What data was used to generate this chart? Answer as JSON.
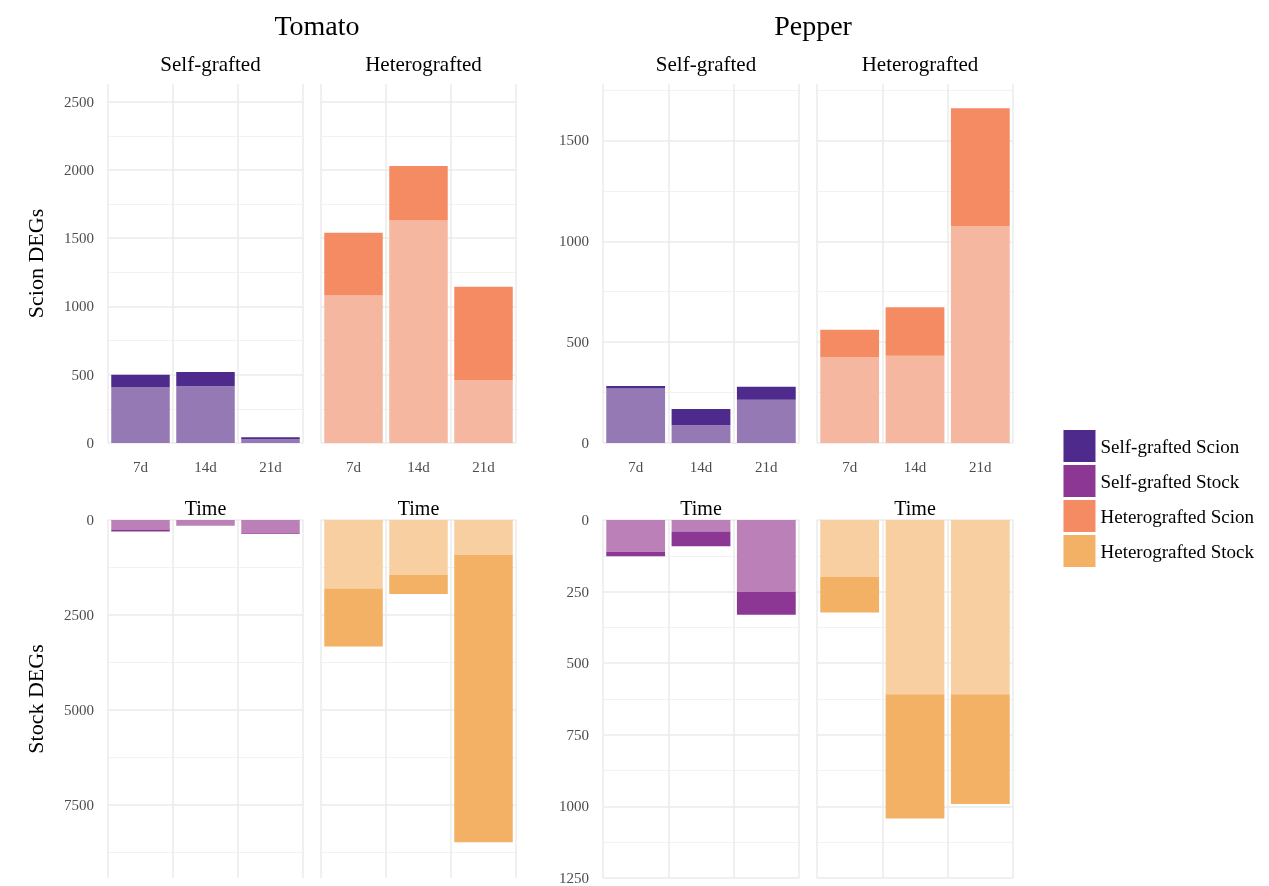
{
  "chart_data": [
    {
      "type": "bar",
      "title": "Tomato",
      "subtitle": "Self-grafted",
      "xlabel": "Time",
      "ylabel": "Scion DEGs",
      "categories": [
        "7d",
        "14d",
        "21d"
      ],
      "stacked": true,
      "ylim": [
        0,
        2630
      ],
      "yticks": [
        0,
        500,
        1000,
        1500,
        2000,
        2500
      ],
      "grid": true,
      "series": [
        {
          "color": "#9479b5",
          "values": [
            410,
            415,
            27
          ]
        },
        {
          "name": "Self-grafted Scion",
          "color": "#4e2a8c",
          "values": [
            90,
            105,
            15
          ]
        }
      ]
    },
    {
      "type": "bar",
      "subtitle": "Heterografted",
      "xlabel": "Time",
      "categories": [
        "7d",
        "14d",
        "21d"
      ],
      "stacked": true,
      "ylim": [
        0,
        2630
      ],
      "yticks": [
        0,
        500,
        1000,
        1500,
        2000,
        2500
      ],
      "grid": true,
      "tick_labels": "x",
      "series": [
        {
          "color": "#f5b7a0",
          "values": [
            1080,
            1630,
            460
          ]
        },
        {
          "name": "Heterografted Scion",
          "color": "#f48b63",
          "values": [
            460,
            400,
            685
          ]
        }
      ]
    },
    {
      "type": "bar",
      "title": "Pepper",
      "subtitle": "Self-grafted",
      "xlabel": "Time",
      "categories": [
        "7d",
        "14d",
        "21d"
      ],
      "stacked": true,
      "ylim": [
        0,
        1780
      ],
      "yticks": [
        0,
        500,
        1000,
        1500
      ],
      "grid": true,
      "series": [
        {
          "color": "#9479b5",
          "values": [
            270,
            88,
            215
          ]
        },
        {
          "name": "Self-grafted Scion",
          "color": "#4e2a8c",
          "values": [
            13,
            81,
            64
          ]
        }
      ]
    },
    {
      "type": "bar",
      "subtitle": "Heterografted",
      "xlabel": "Time",
      "categories": [
        "7d",
        "14d",
        "21d"
      ],
      "stacked": true,
      "ylim": [
        0,
        1780
      ],
      "yticks": [
        0,
        500,
        1000,
        1500
      ],
      "grid": true,
      "tick_labels": "x",
      "legend": "right",
      "series": [
        {
          "color": "#f5b7a0",
          "values": [
            427,
            432,
            1075
          ]
        },
        {
          "name": "Heterografted Scion",
          "color": "#f48b63",
          "values": [
            134,
            241,
            585
          ]
        }
      ]
    },
    {
      "type": "bar",
      "ylabel": "Stock DEGs",
      "categories": [
        "7d",
        "14d",
        "21d"
      ],
      "stacked": true,
      "ylim": [
        9420,
        0
      ],
      "yticks": [
        0,
        2500,
        5000,
        7500
      ],
      "grid": true,
      "tick_labels": "y",
      "series": [
        {
          "color": "#bc80b9",
          "values": [
            250,
            150,
            340
          ]
        },
        {
          "name": "Self-grafted Stock",
          "color": "#8c3793",
          "values": [
            50,
            null,
            20
          ]
        }
      ]
    },
    {
      "type": "bar",
      "categories": [
        "7d",
        "14d",
        "21d"
      ],
      "stacked": true,
      "ylim": [
        9420,
        0
      ],
      "yticks": [
        0,
        2500,
        5000,
        7500
      ],
      "grid": true,
      "tick_labels": false,
      "series": [
        {
          "color": "#f7cfa1",
          "values": [
            1800,
            1450,
            920
          ]
        },
        {
          "name": "Heterografted Stock",
          "color": "#f2b165",
          "values": [
            1530,
            500,
            7560
          ]
        }
      ]
    },
    {
      "type": "bar",
      "categories": [
        "7d",
        "14d",
        "21d"
      ],
      "stacked": true,
      "ylim": [
        1250,
        0
      ],
      "yticks": [
        0,
        250,
        500,
        750,
        1000,
        1250
      ],
      "grid": true,
      "tick_labels": "y",
      "series": [
        {
          "color": "#bc80b9",
          "values": [
            111,
            40,
            251
          ]
        },
        {
          "name": "Self-grafted Stock",
          "color": "#8c3793",
          "values": [
            16,
            52,
            80
          ]
        }
      ]
    },
    {
      "type": "bar",
      "categories": [
        "7d",
        "14d",
        "21d"
      ],
      "stacked": true,
      "ylim": [
        1250,
        0
      ],
      "yticks": [
        0,
        250,
        500,
        750,
        1000,
        1250
      ],
      "grid": true,
      "tick_labels": false,
      "series": [
        {
          "color": "#f7cfa1",
          "values": [
            198,
            608,
            608
          ]
        },
        {
          "name": "Heterografted Stock",
          "color": "#f2b165",
          "values": [
            125,
            434,
            384
          ]
        }
      ]
    }
  ]
}
